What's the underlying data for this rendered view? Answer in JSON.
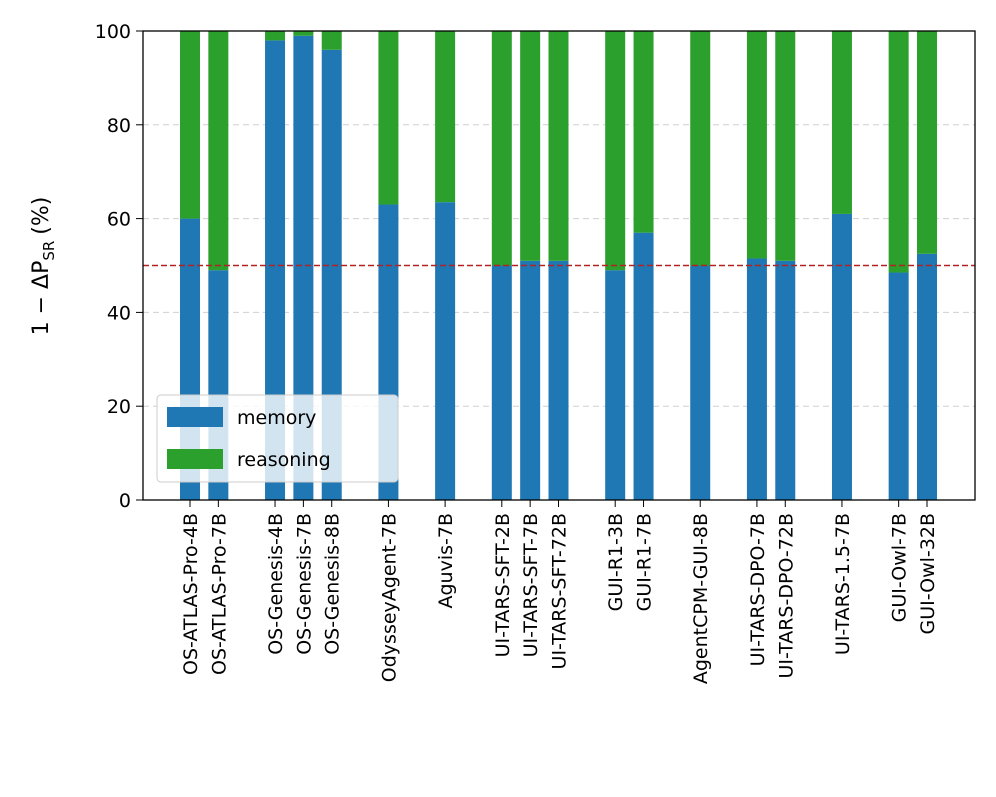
{
  "chart_data": {
    "type": "bar",
    "stacked": true,
    "ylabel": "1 − ΔP",
    "ylabel_sub": "SR",
    "ylabel_unit": "(%)",
    "categories": [
      "OS-ATLAS-Pro-4B",
      "OS-ATLAS-Pro-7B",
      null,
      "OS-Genesis-4B",
      "OS-Genesis-7B",
      "OS-Genesis-8B",
      null,
      "OdysseyAgent-7B",
      null,
      "Aguvis-7B",
      null,
      "UI-TARS-SFT-2B",
      "UI-TARS-SFT-7B",
      "UI-TARS-SFT-72B",
      null,
      "GUI-R1-3B",
      "GUI-R1-7B",
      null,
      "AgentCPM-GUI-8B",
      null,
      "UI-TARS-DPO-7B",
      "UI-TARS-DPO-72B",
      null,
      "UI-TARS-1.5-7B",
      null,
      "GUI-Owl-7B",
      "GUI-Owl-32B"
    ],
    "series": [
      {
        "name": "memory",
        "color": "#1f77b4",
        "values": [
          60,
          49,
          null,
          98,
          99,
          96,
          null,
          63,
          null,
          63.5,
          null,
          50,
          51,
          51,
          null,
          49,
          57,
          null,
          50,
          null,
          51.5,
          51,
          null,
          61,
          null,
          48.5,
          52.5
        ]
      },
      {
        "name": "reasoning",
        "color": "#2ca02c",
        "values": [
          40,
          51,
          null,
          2,
          1,
          4,
          null,
          37,
          null,
          36.5,
          null,
          50,
          49,
          49,
          null,
          51,
          43,
          null,
          50,
          null,
          48.5,
          49,
          null,
          39,
          null,
          51.5,
          47.5
        ]
      }
    ],
    "ylim": [
      0,
      100
    ],
    "yticks": [
      0,
      20,
      40,
      60,
      80,
      100
    ],
    "grid": true,
    "reference_line": {
      "value": 50,
      "color": "#b22222"
    },
    "legend": "lower left"
  }
}
